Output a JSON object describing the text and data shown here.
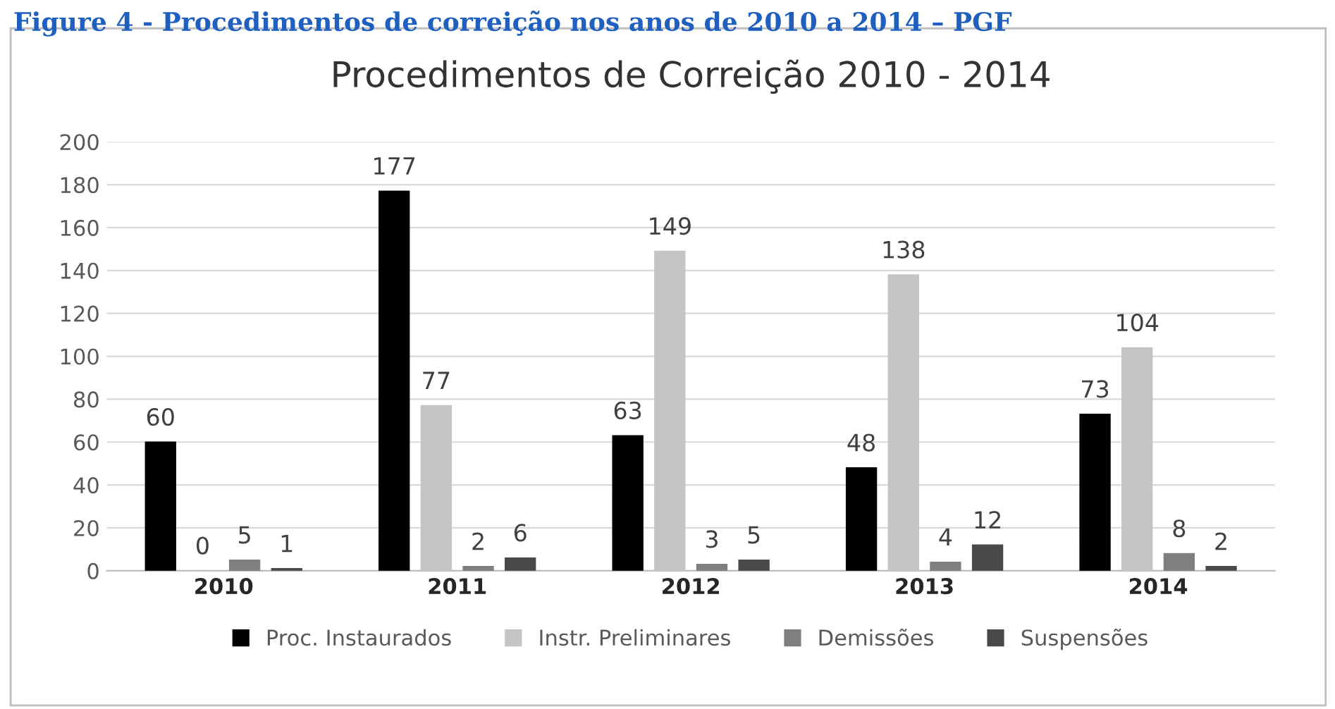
{
  "chart_data": {
    "type": "bar",
    "title": "Procedimentos de Correição 2010 - 2014",
    "annotations": [
      "Figure 4 - Procedimentos de correição nos anos de 2010 a 2014 – PGF"
    ],
    "categories": [
      "2010",
      "2011",
      "2012",
      "2013",
      "2014"
    ],
    "series": [
      {
        "name": "Proc. Instaurados",
        "color": "#000000",
        "values": [
          60,
          177,
          63,
          48,
          73
        ]
      },
      {
        "name": "Instr. Preliminares",
        "color": "#c4c4c4",
        "values": [
          0,
          77,
          149,
          138,
          104
        ]
      },
      {
        "name": "Demissões",
        "color": "#7f7f7f",
        "values": [
          5,
          2,
          3,
          4,
          8
        ]
      },
      {
        "name": "Suspensões",
        "color": "#4a4a4a",
        "values": [
          1,
          6,
          5,
          12,
          2
        ]
      }
    ],
    "ylim": [
      0,
      200
    ],
    "yticks": [
      0,
      20,
      40,
      60,
      80,
      100,
      120,
      140,
      160,
      180,
      200
    ],
    "grid": "y",
    "legend": "bottom",
    "data_labels": true
  }
}
